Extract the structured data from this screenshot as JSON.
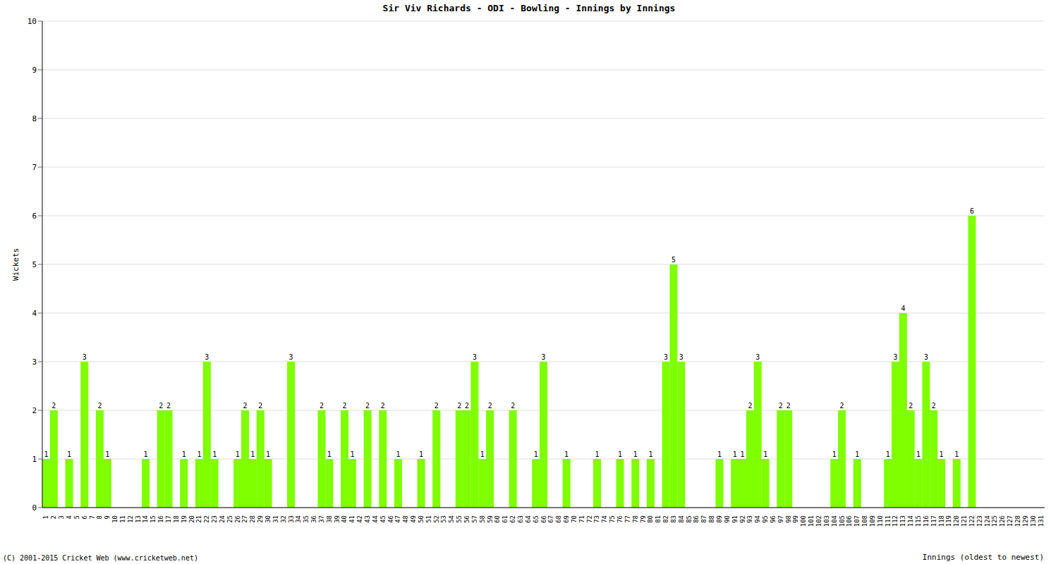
{
  "chart_data": {
    "type": "bar",
    "title": "Sir Viv Richards - ODI - Bowling - Innings by Innings",
    "xlabel": "Innings (oldest to newest)",
    "ylabel": "Wickets",
    "annotations": [
      "(C) 2001-2015 Cricket Web (www.cricketweb.net)"
    ],
    "categories": [
      "1",
      "2",
      "3",
      "4",
      "5",
      "6",
      "7",
      "8",
      "9",
      "10",
      "11",
      "12",
      "13",
      "14",
      "15",
      "16",
      "17",
      "18",
      "19",
      "20",
      "21",
      "22",
      "23",
      "24",
      "25",
      "26",
      "27",
      "28",
      "29",
      "30",
      "31",
      "32",
      "33",
      "34",
      "35",
      "36",
      "37",
      "38",
      "39",
      "40",
      "41",
      "42",
      "43",
      "44",
      "45",
      "46",
      "47",
      "48",
      "49",
      "50",
      "51",
      "52",
      "53",
      "54",
      "55",
      "56",
      "57",
      "58",
      "59",
      "60",
      "61",
      "62",
      "63",
      "64",
      "65",
      "66",
      "67",
      "68",
      "69",
      "70",
      "71",
      "72",
      "73",
      "74",
      "75",
      "76",
      "77",
      "78",
      "79",
      "80",
      "81",
      "82",
      "83",
      "84",
      "85",
      "86",
      "87",
      "88",
      "89",
      "90",
      "91",
      "92",
      "93",
      "94",
      "95",
      "96",
      "97",
      "98",
      "99",
      "100",
      "101",
      "102",
      "103",
      "104",
      "105",
      "106",
      "107",
      "108",
      "109",
      "110",
      "111",
      "112",
      "113",
      "114",
      "115",
      "116",
      "117",
      "118",
      "119",
      "120",
      "121",
      "122",
      "123",
      "124",
      "125",
      "126",
      "127",
      "128",
      "129",
      "130",
      "131"
    ],
    "values": [
      1,
      2,
      0,
      1,
      0,
      3,
      0,
      2,
      1,
      0,
      0,
      0,
      0,
      1,
      0,
      2,
      2,
      0,
      1,
      0,
      1,
      3,
      1,
      0,
      0,
      1,
      2,
      1,
      2,
      1,
      0,
      0,
      3,
      0,
      0,
      0,
      2,
      1,
      0,
      2,
      1,
      0,
      2,
      0,
      2,
      0,
      1,
      0,
      0,
      1,
      0,
      2,
      0,
      0,
      2,
      2,
      3,
      1,
      2,
      0,
      0,
      2,
      0,
      0,
      1,
      3,
      0,
      0,
      1,
      0,
      0,
      0,
      1,
      0,
      0,
      1,
      0,
      1,
      0,
      1,
      0,
      3,
      5,
      3,
      0,
      0,
      0,
      0,
      1,
      0,
      1,
      1,
      2,
      3,
      1,
      0,
      2,
      2,
      0,
      0,
      0,
      0,
      0,
      1,
      2,
      0,
      1,
      0,
      0,
      0,
      1,
      3,
      4,
      2,
      1,
      3,
      2,
      1,
      0,
      1,
      0,
      6,
      0,
      0,
      0,
      0,
      0,
      0,
      0,
      0,
      0
    ],
    "color": "#7fff00",
    "ylim": [
      0,
      10
    ],
    "yticks": [
      0,
      1,
      2,
      3,
      4,
      5,
      6,
      7,
      8,
      9,
      10
    ],
    "grid": true,
    "data_labels": true
  }
}
